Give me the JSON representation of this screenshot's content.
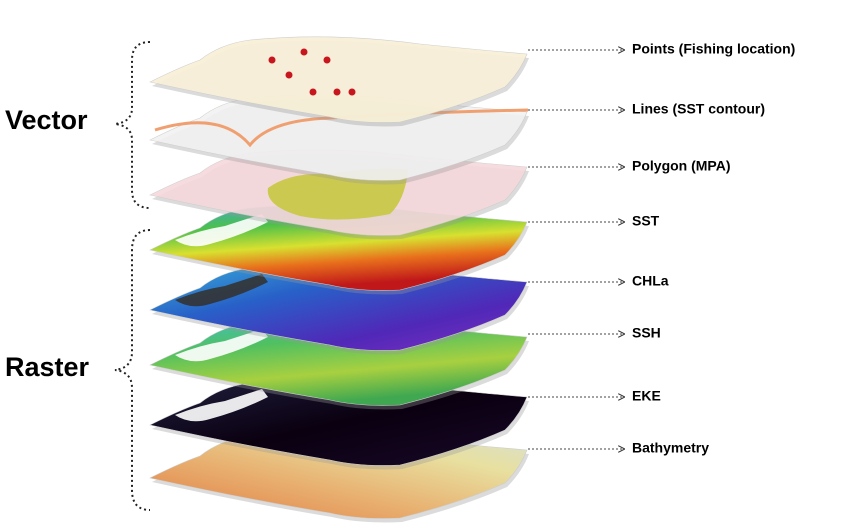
{
  "groups": [
    {
      "label": "Vector"
    },
    {
      "label": "Raster"
    }
  ],
  "layers": [
    {
      "label": "Points (Fishing location)"
    },
    {
      "label": "Lines (SST contour)"
    },
    {
      "label": "Polygon (MPA)"
    },
    {
      "label": "SST"
    },
    {
      "label": "CHLa"
    },
    {
      "label": "SSH"
    },
    {
      "label": "EKE"
    },
    {
      "label": "Bathymetry"
    }
  ]
}
